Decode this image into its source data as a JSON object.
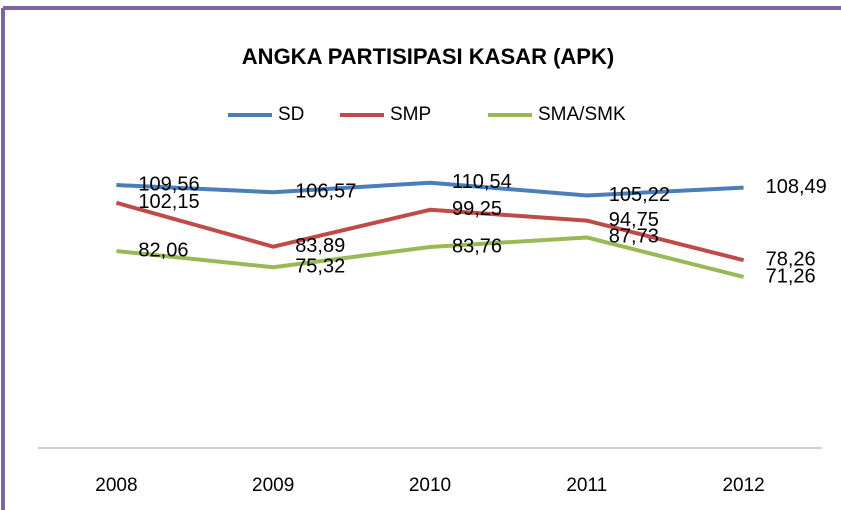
{
  "chart_data": {
    "type": "line",
    "title": "ANGKA PARTISIPASI KASAR (APK)",
    "categories": [
      "2008",
      "2009",
      "2010",
      "2011",
      "2012"
    ],
    "ylim": [
      0,
      120
    ],
    "series": [
      {
        "name": "SD",
        "color": "#4a7ebb",
        "values": [
          109.56,
          106.57,
          110.54,
          105.22,
          108.49
        ],
        "value_labels": [
          "109,56",
          "106,57",
          "110,54",
          "105,22",
          "108,49"
        ]
      },
      {
        "name": "SMP",
        "color": "#be4b48",
        "values": [
          102.15,
          83.89,
          99.25,
          94.75,
          78.26
        ],
        "value_labels": [
          "102,15",
          "83,89",
          "99,25",
          "94,75",
          "78,26"
        ]
      },
      {
        "name": "SMA/SMK",
        "color": "#98b954",
        "values": [
          82.06,
          75.32,
          83.76,
          87.73,
          71.26
        ],
        "value_labels": [
          "82,06",
          "75,32",
          "83,76",
          "87,73",
          "71,26"
        ]
      }
    ]
  }
}
